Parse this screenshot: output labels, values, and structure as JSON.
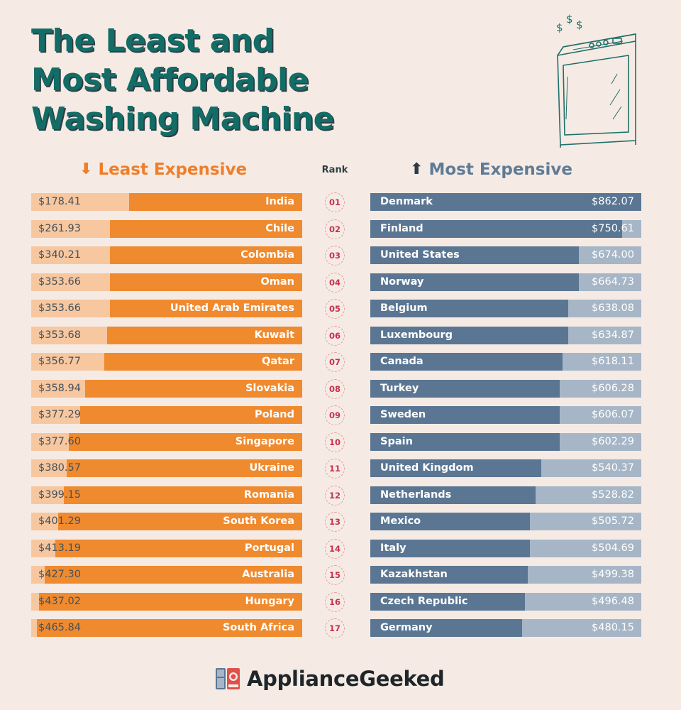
{
  "title": "The Least and Most Affordable Washing Machine",
  "title_lines": [
    "The Least and",
    "Most Affordable",
    "Washing Machine"
  ],
  "colors": {
    "background": "#f5ebe4",
    "title": "#136c66",
    "least_fill": "#f08a2e",
    "least_track": "#f7c7a0",
    "most_fill": "#5a7693",
    "most_track": "#a6b6c6",
    "rank_text": "#c8304b"
  },
  "headers": {
    "least": "Least Expensive",
    "least_icon": "arrow-down-icon",
    "rank": "Rank",
    "most": "Most Expensive",
    "most_icon": "arrow-up-icon"
  },
  "logo": {
    "text": "ApplianceGeeked",
    "icon": "appliance-logo-icon"
  },
  "chart_data": {
    "type": "bar",
    "ranks": [
      "01",
      "02",
      "03",
      "04",
      "05",
      "06",
      "07",
      "08",
      "09",
      "10",
      "11",
      "12",
      "13",
      "14",
      "15",
      "16",
      "17"
    ],
    "series": [
      {
        "name": "Least Expensive",
        "categories": [
          "India",
          "Chile",
          "Colombia",
          "Oman",
          "United Arab Emirates",
          "Kuwait",
          "Qatar",
          "Slovakia",
          "Poland",
          "Singapore",
          "Ukraine",
          "Romania",
          "South Korea",
          "Portugal",
          "Australia",
          "Hungary",
          "South Africa"
        ],
        "labels": [
          "$178.41",
          "$261.93",
          "$340.21",
          "$353.66",
          "$353.66",
          "$353.68",
          "$356.77",
          "$358.94",
          "$377.29",
          "$377.60",
          "$380.57",
          "$399.15",
          "$401.29",
          "$413.19",
          "$427.30",
          "$437.02",
          "$465.84"
        ],
        "fill": [
          0.64,
          0.71,
          0.71,
          0.71,
          0.71,
          0.72,
          0.73,
          0.8,
          0.82,
          0.86,
          0.87,
          0.88,
          0.9,
          0.91,
          0.95,
          0.97,
          0.98
        ]
      },
      {
        "name": "Most Expensive",
        "categories": [
          "Denmark",
          "Finland",
          "United States",
          "Norway",
          "Belgium",
          "Luxembourg",
          "Canada",
          "Turkey",
          "Sweden",
          "Spain",
          "United Kingdom",
          "Netherlands",
          "Mexico",
          "Italy",
          "Kazakhstan",
          "Czech Republic",
          "Germany"
        ],
        "labels": [
          "$862.07",
          "$750.61",
          "$674.00",
          "$664.73",
          "$638.08",
          "$634.87",
          "$618.11",
          "$606.28",
          "$606.07",
          "$602.29",
          "$540.37",
          "$528.82",
          "$505.72",
          "$504.69",
          "$499.38",
          "$496.48",
          "$480.15"
        ],
        "fill": [
          1.0,
          0.93,
          0.77,
          0.77,
          0.73,
          0.73,
          0.71,
          0.7,
          0.7,
          0.7,
          0.63,
          0.61,
          0.59,
          0.59,
          0.58,
          0.57,
          0.56
        ]
      }
    ]
  }
}
